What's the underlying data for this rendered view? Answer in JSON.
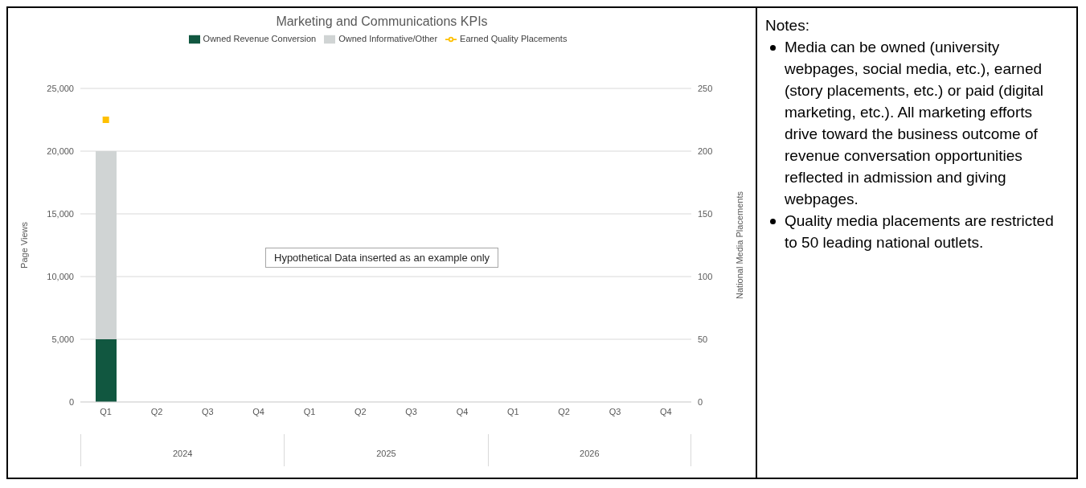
{
  "chart_data": {
    "type": "bar",
    "title": "Marketing and Communications KPIs",
    "ylabel": "Page Views",
    "y2label": "National Media Placements",
    "categories": [
      "Q1",
      "Q2",
      "Q3",
      "Q4",
      "Q1",
      "Q2",
      "Q3",
      "Q4",
      "Q1",
      "Q2",
      "Q3",
      "Q4"
    ],
    "stacked": true,
    "series": [
      {
        "name": "Owned Revenue Conversion",
        "color": "#115740",
        "values": [
          5000,
          null,
          null,
          null,
          null,
          null,
          null,
          null,
          null,
          null,
          null,
          null
        ]
      },
      {
        "name": "Owned Informative/Other",
        "color": "#d0d4d4",
        "values": [
          15000,
          null,
          null,
          null,
          null,
          null,
          null,
          null,
          null,
          null,
          null,
          null
        ]
      },
      {
        "name": "Earned Quality Placements",
        "type": "line",
        "axis": "y2",
        "color": "#ffc000",
        "marker": "square",
        "values": [
          225,
          null,
          null,
          null,
          null,
          null,
          null,
          null,
          null,
          null,
          null,
          null
        ]
      }
    ],
    "ylim": [
      0,
      25000
    ],
    "yticks": [
      0,
      {
        "value": 5000,
        "label": "5,000"
      },
      {
        "value": 10000,
        "label": "10,000"
      },
      {
        "value": 15000,
        "label": "15,000"
      },
      {
        "value": 20000,
        "label": "20,000"
      },
      {
        "value": 25000,
        "label": "25,000"
      }
    ],
    "y2lim": [
      0,
      250
    ],
    "y2ticks": [
      0,
      50,
      100,
      150,
      200,
      250
    ],
    "grid": "y",
    "legend": "top",
    "annotations": [
      "Hypothetical Data inserted as an example only",
      "2024",
      "2025",
      "2026",
      "Notes:",
      "Media can be owned (university webpages, social media, etc.), earned (story placements, etc.) or paid (digital marketing, etc.). All marketing efforts drive toward the business outcome of revenue conversation opportunities reflected in admission and giving webpages.",
      "Quality media placements are restricted to 50 leading national outlets."
    ]
  }
}
